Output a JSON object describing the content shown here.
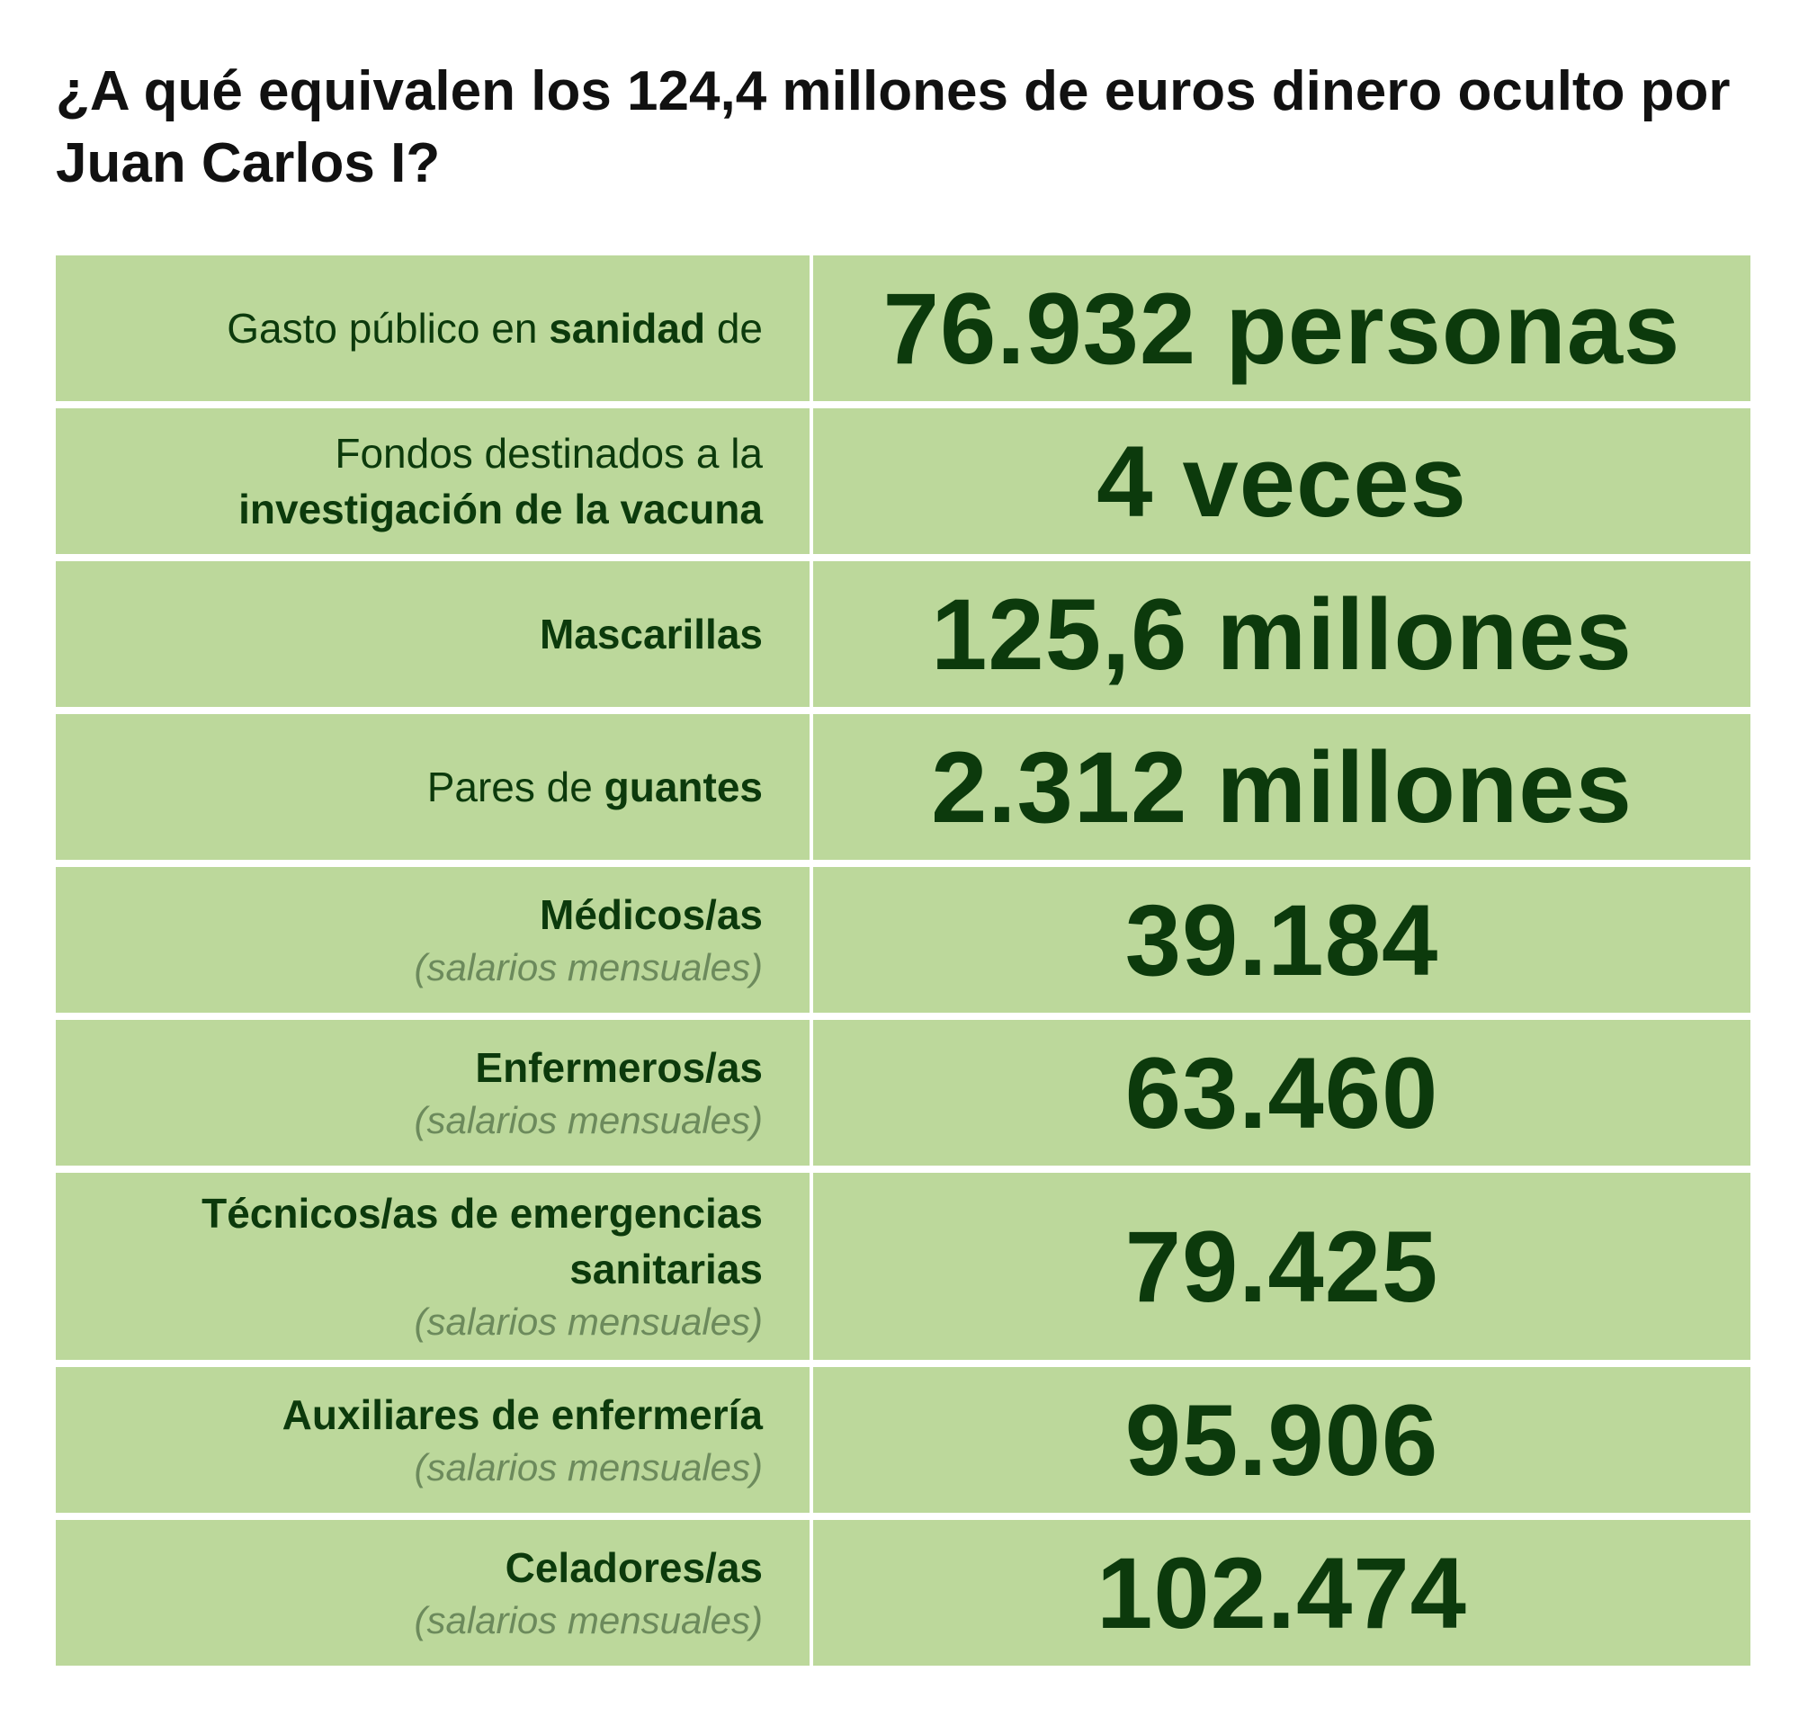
{
  "chart_data": {
    "type": "table",
    "title": "¿A qué equivalen los 124,4 millones de euros dinero oculto por Juan Carlos I?",
    "rows": [
      {
        "label": [
          [
            {
              "t": "Gasto público en ",
              "b": false
            },
            {
              "t": "sanidad",
              "b": true
            },
            {
              "t": " de",
              "b": false
            }
          ]
        ],
        "note": "",
        "value": "76.932 personas"
      },
      {
        "label": [
          [
            {
              "t": "Fondos destinados a la",
              "b": false
            }
          ],
          [
            {
              "t": "investigación de la vacuna",
              "b": true
            }
          ]
        ],
        "note": "",
        "value": "4 veces"
      },
      {
        "label": [
          [
            {
              "t": "Mascarillas",
              "b": true
            }
          ]
        ],
        "note": "",
        "value": "125,6 millones"
      },
      {
        "label": [
          [
            {
              "t": "Pares de ",
              "b": false
            },
            {
              "t": "guantes",
              "b": true
            }
          ]
        ],
        "note": "",
        "value": "2.312 millones"
      },
      {
        "label": [
          [
            {
              "t": "Médicos/as",
              "b": true
            }
          ]
        ],
        "note": "(salarios mensuales)",
        "value": "39.184"
      },
      {
        "label": [
          [
            {
              "t": "Enfermeros/as",
              "b": true
            }
          ]
        ],
        "note": "(salarios mensuales)",
        "value": "63.460"
      },
      {
        "label": [
          [
            {
              "t": "Técnicos/as de emergencias",
              "b": true
            }
          ],
          [
            {
              "t": "sanitarias",
              "b": true
            }
          ]
        ],
        "note": "(salarios mensuales)",
        "value": "79.425"
      },
      {
        "label": [
          [
            {
              "t": "Auxiliares de enfermería",
              "b": true
            }
          ]
        ],
        "note": "(salarios mensuales)",
        "value": "95.906"
      },
      {
        "label": [
          [
            {
              "t": "Celadores/as",
              "b": true
            }
          ]
        ],
        "note": "(salarios mensuales)",
        "value": "102.474"
      }
    ],
    "colors": {
      "cell_background": "#bcd89b",
      "text": "#0c3a0c",
      "note_text": "#6c8a5c",
      "title_text": "#111111"
    }
  }
}
